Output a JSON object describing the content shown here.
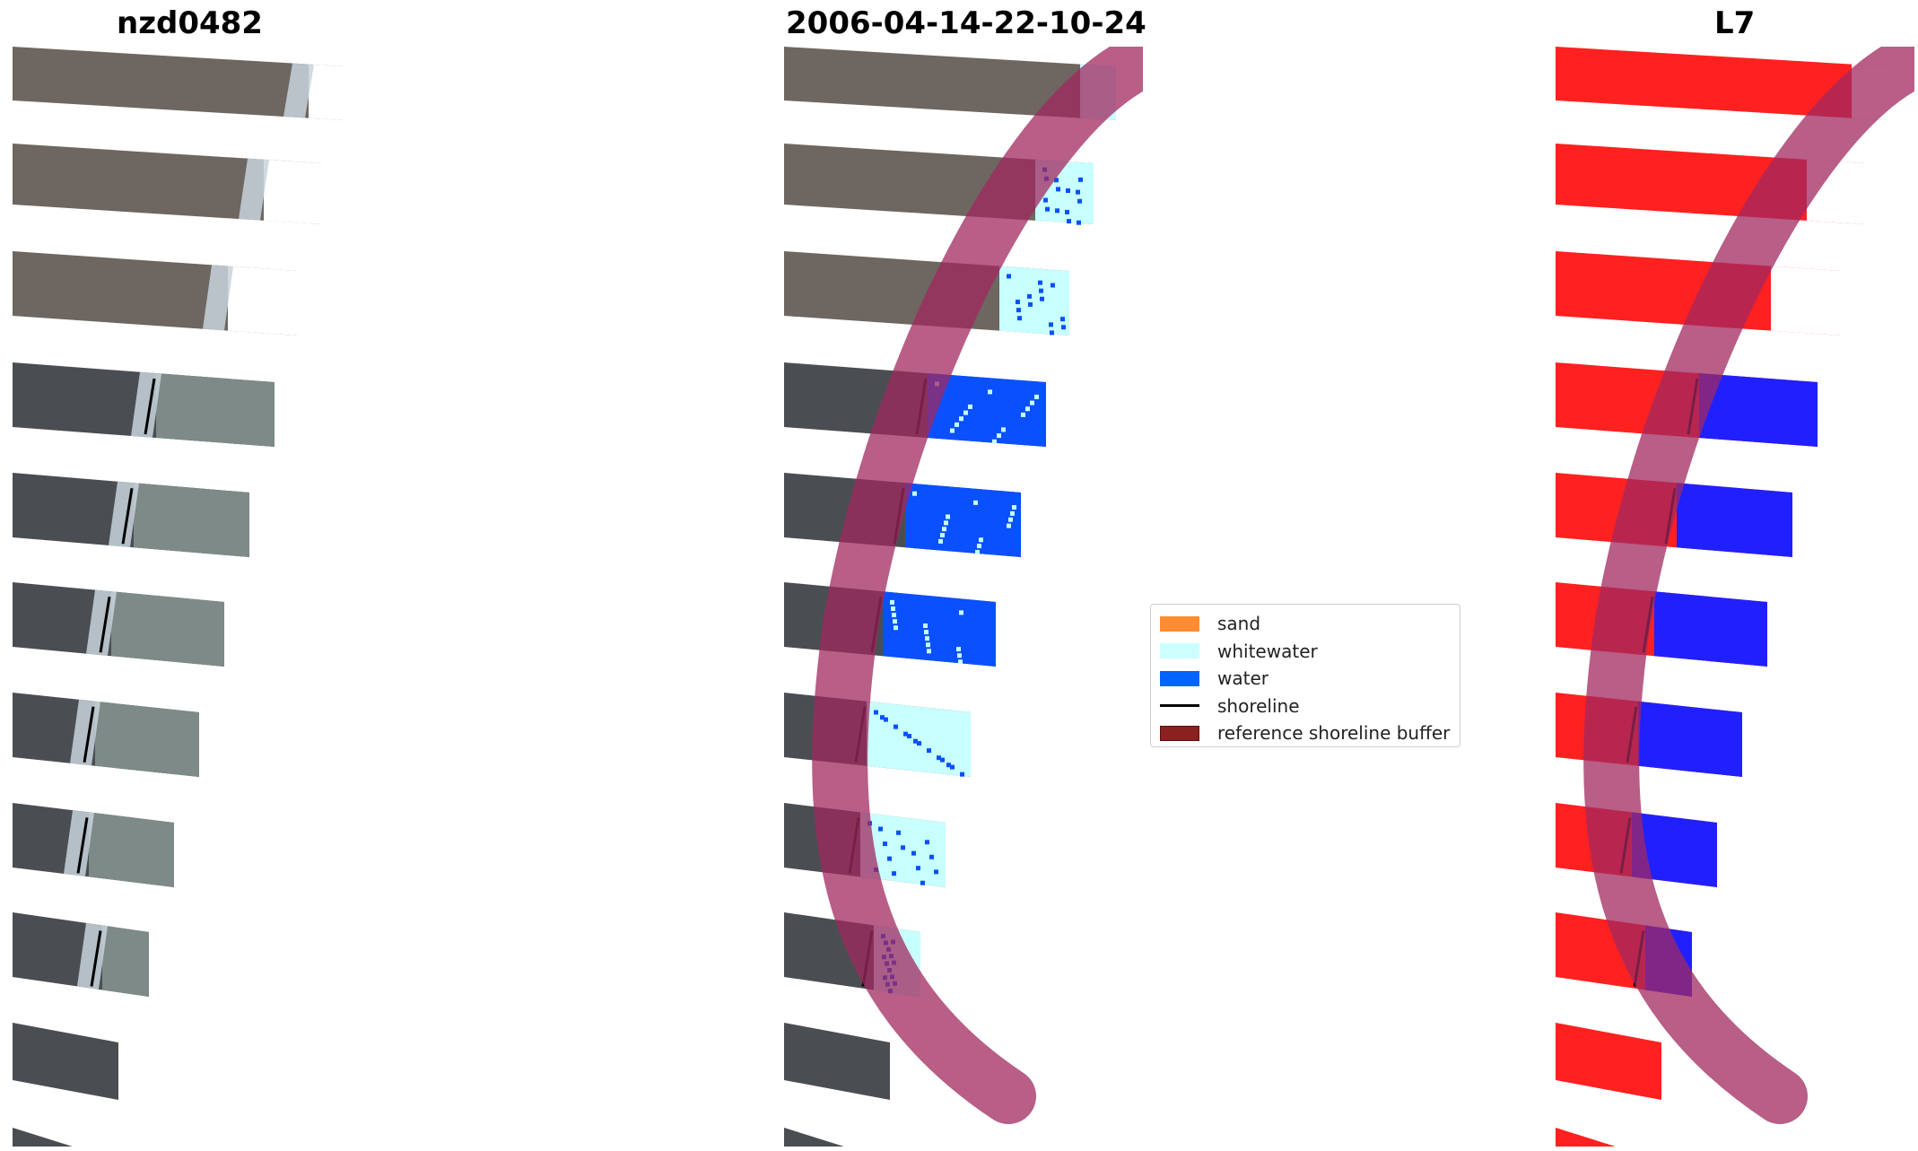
{
  "titles": {
    "left": "nzd0482",
    "center": "2006-04-14-22-10-24",
    "right": "L7"
  },
  "legend": {
    "items": [
      {
        "label": "sand",
        "color": "#ff8c33",
        "kind": "patch"
      },
      {
        "label": "whitewater",
        "color": "#ccffff",
        "kind": "patch"
      },
      {
        "label": "water",
        "color": "#0064ff",
        "kind": "patch"
      },
      {
        "label": "shoreline",
        "color": "#000000",
        "kind": "line"
      },
      {
        "label": "reference shoreline buffer",
        "color": "#8b2020",
        "kind": "patch"
      }
    ]
  },
  "colors": {
    "buffer": "#a0285f",
    "land_rgb": "#6e6660",
    "land_dark": "#4a4e52",
    "surf": "#c7d3dc",
    "water_class": "#0a50ff",
    "whitewater_class": "#c8ffff",
    "land_class": "#ff2020",
    "water_blue": "#2020ff"
  }
}
